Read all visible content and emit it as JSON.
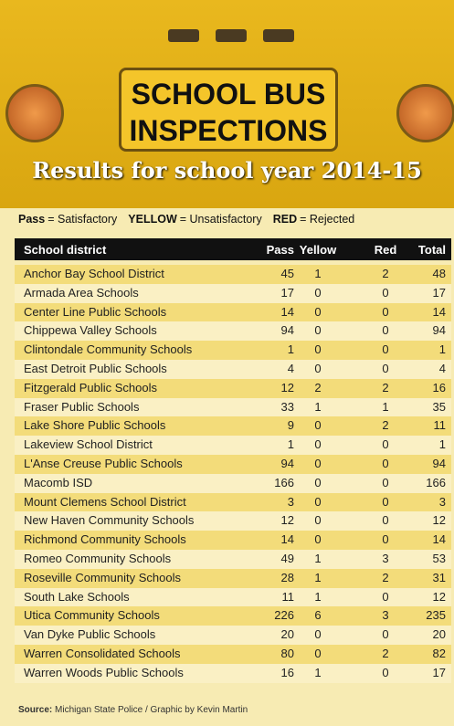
{
  "header": {
    "title": [
      "SCHOOL BUS",
      "INSPECTIONS"
    ],
    "subtitle": "Results for school year 2014-15"
  },
  "legend": [
    {
      "key": "Pass",
      "text": "= Satisfactory"
    },
    {
      "key": "YELLOW",
      "text": "= Unsatisfactory"
    },
    {
      "key": "RED",
      "text": "= Rejected"
    }
  ],
  "table": {
    "columns": [
      "School district",
      "Pass",
      "Yellow",
      "Red",
      "Total"
    ],
    "rows": [
      [
        "Anchor Bay School District",
        45,
        1,
        2,
        48
      ],
      [
        "Armada Area Schools",
        17,
        0,
        0,
        17
      ],
      [
        "Center Line Public Schools",
        14,
        0,
        0,
        14
      ],
      [
        "Chippewa Valley Schools",
        94,
        0,
        0,
        94
      ],
      [
        "Clintondale Community Schools",
        1,
        0,
        0,
        1
      ],
      [
        "East Detroit Public Schools",
        4,
        0,
        0,
        4
      ],
      [
        "Fitzgerald Public Schools",
        12,
        2,
        2,
        16
      ],
      [
        "Fraser Public Schools",
        33,
        1,
        1,
        35
      ],
      [
        "Lake Shore Public Schools",
        9,
        0,
        2,
        11
      ],
      [
        "Lakeview School District",
        1,
        0,
        0,
        1
      ],
      [
        "L'Anse Creuse Public Schools",
        94,
        0,
        0,
        94
      ],
      [
        "Macomb ISD",
        166,
        0,
        0,
        166
      ],
      [
        "Mount Clemens School District",
        3,
        0,
        0,
        3
      ],
      [
        "New Haven Community Schools",
        12,
        0,
        0,
        12
      ],
      [
        "Richmond Community Schools",
        14,
        0,
        0,
        14
      ],
      [
        "Romeo Community Schools",
        49,
        1,
        3,
        53
      ],
      [
        "Roseville Community Schools",
        28,
        1,
        2,
        31
      ],
      [
        "South Lake Schools",
        11,
        1,
        0,
        12
      ],
      [
        "Utica Community Schools",
        226,
        6,
        3,
        235
      ],
      [
        "Van Dyke Public Schools",
        20,
        0,
        0,
        20
      ],
      [
        "Warren Consolidated Schools",
        80,
        0,
        2,
        82
      ],
      [
        "Warren Woods Public Schools",
        16,
        1,
        0,
        17
      ]
    ]
  },
  "source": {
    "label": "Source:",
    "text": "Michigan State Police / Graphic by Kevin Martin"
  }
}
